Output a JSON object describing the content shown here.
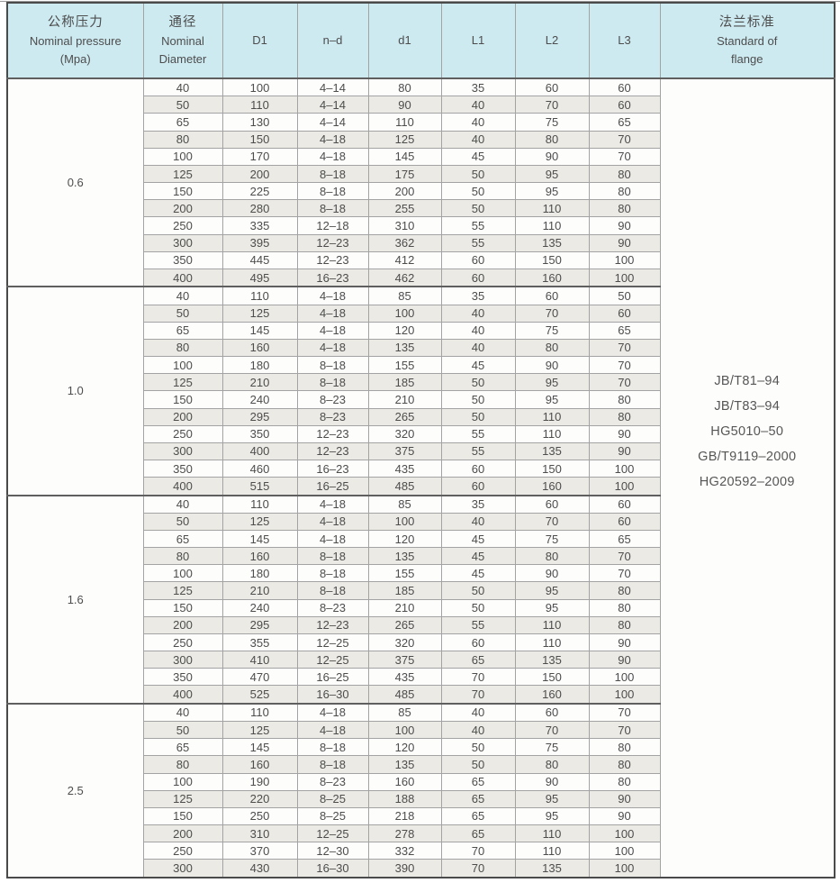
{
  "colors": {
    "header_bg": "#cdeaf1",
    "stripe_bg": "#ebeae4",
    "outer_border": "#4a4a4a",
    "grid_line": "#a3a3a3",
    "text": "#4d4d4d"
  },
  "header": {
    "pressure": {
      "zh": "公称压力",
      "en": "Nominal pressure",
      "unit": "(Mpa)"
    },
    "diameter": {
      "zh": "通径",
      "en1": "Nominal",
      "en2": "Diameter"
    },
    "cols": [
      "D1",
      "n–d",
      "d1",
      "L1",
      "L2",
      "L3"
    ],
    "standard": {
      "zh": "法兰标准",
      "en1": "Standard of",
      "en2": "flange"
    }
  },
  "standards": [
    "JB/T81–94",
    "JB/T83–94",
    "HG5010–50",
    "GB/T9119–2000",
    "HG20592–2009"
  ],
  "groups": [
    {
      "pressure": "0.6",
      "rows": [
        [
          "40",
          "100",
          "4–14",
          "80",
          "35",
          "60",
          "60"
        ],
        [
          "50",
          "110",
          "4–14",
          "90",
          "40",
          "70",
          "60"
        ],
        [
          "65",
          "130",
          "4–14",
          "110",
          "40",
          "75",
          "65"
        ],
        [
          "80",
          "150",
          "4–18",
          "125",
          "40",
          "80",
          "70"
        ],
        [
          "100",
          "170",
          "4–18",
          "145",
          "45",
          "90",
          "70"
        ],
        [
          "125",
          "200",
          "8–18",
          "175",
          "50",
          "95",
          "80"
        ],
        [
          "150",
          "225",
          "8–18",
          "200",
          "50",
          "95",
          "80"
        ],
        [
          "200",
          "280",
          "8–18",
          "255",
          "50",
          "110",
          "80"
        ],
        [
          "250",
          "335",
          "12–18",
          "310",
          "55",
          "110",
          "90"
        ],
        [
          "300",
          "395",
          "12–23",
          "362",
          "55",
          "135",
          "90"
        ],
        [
          "350",
          "445",
          "12–23",
          "412",
          "60",
          "150",
          "100"
        ],
        [
          "400",
          "495",
          "16–23",
          "462",
          "60",
          "160",
          "100"
        ]
      ]
    },
    {
      "pressure": "1.0",
      "rows": [
        [
          "40",
          "110",
          "4–18",
          "85",
          "35",
          "60",
          "50"
        ],
        [
          "50",
          "125",
          "4–18",
          "100",
          "40",
          "70",
          "60"
        ],
        [
          "65",
          "145",
          "4–18",
          "120",
          "40",
          "75",
          "65"
        ],
        [
          "80",
          "160",
          "4–18",
          "135",
          "40",
          "80",
          "70"
        ],
        [
          "100",
          "180",
          "8–18",
          "155",
          "45",
          "90",
          "70"
        ],
        [
          "125",
          "210",
          "8–18",
          "185",
          "50",
          "95",
          "70"
        ],
        [
          "150",
          "240",
          "8–23",
          "210",
          "50",
          "95",
          "80"
        ],
        [
          "200",
          "295",
          "8–23",
          "265",
          "50",
          "110",
          "80"
        ],
        [
          "250",
          "350",
          "12–23",
          "320",
          "55",
          "110",
          "90"
        ],
        [
          "300",
          "400",
          "12–23",
          "375",
          "55",
          "135",
          "90"
        ],
        [
          "350",
          "460",
          "16–23",
          "435",
          "60",
          "150",
          "100"
        ],
        [
          "400",
          "515",
          "16–25",
          "485",
          "60",
          "160",
          "100"
        ]
      ]
    },
    {
      "pressure": "1.6",
      "rows": [
        [
          "40",
          "110",
          "4–18",
          "85",
          "35",
          "60",
          "60"
        ],
        [
          "50",
          "125",
          "4–18",
          "100",
          "40",
          "70",
          "60"
        ],
        [
          "65",
          "145",
          "4–18",
          "120",
          "45",
          "75",
          "65"
        ],
        [
          "80",
          "160",
          "8–18",
          "135",
          "45",
          "80",
          "70"
        ],
        [
          "100",
          "180",
          "8–18",
          "155",
          "45",
          "90",
          "70"
        ],
        [
          "125",
          "210",
          "8–18",
          "185",
          "50",
          "95",
          "80"
        ],
        [
          "150",
          "240",
          "8–23",
          "210",
          "50",
          "95",
          "80"
        ],
        [
          "200",
          "295",
          "12–23",
          "265",
          "55",
          "110",
          "80"
        ],
        [
          "250",
          "355",
          "12–25",
          "320",
          "60",
          "110",
          "90"
        ],
        [
          "300",
          "410",
          "12–25",
          "375",
          "65",
          "135",
          "90"
        ],
        [
          "350",
          "470",
          "16–25",
          "435",
          "70",
          "150",
          "100"
        ],
        [
          "400",
          "525",
          "16–30",
          "485",
          "70",
          "160",
          "100"
        ]
      ]
    },
    {
      "pressure": "2.5",
      "rows": [
        [
          "40",
          "110",
          "4–18",
          "85",
          "40",
          "60",
          "70"
        ],
        [
          "50",
          "125",
          "4–18",
          "100",
          "40",
          "70",
          "70"
        ],
        [
          "65",
          "145",
          "8–18",
          "120",
          "50",
          "75",
          "80"
        ],
        [
          "80",
          "160",
          "8–18",
          "135",
          "50",
          "80",
          "80"
        ],
        [
          "100",
          "190",
          "8–23",
          "160",
          "65",
          "90",
          "80"
        ],
        [
          "125",
          "220",
          "8–25",
          "188",
          "65",
          "95",
          "90"
        ],
        [
          "150",
          "250",
          "8–25",
          "218",
          "65",
          "95",
          "90"
        ],
        [
          "200",
          "310",
          "12–25",
          "278",
          "65",
          "110",
          "100"
        ],
        [
          "250",
          "370",
          "12–30",
          "332",
          "70",
          "110",
          "100"
        ],
        [
          "300",
          "430",
          "16–30",
          "390",
          "70",
          "135",
          "100"
        ]
      ]
    }
  ]
}
